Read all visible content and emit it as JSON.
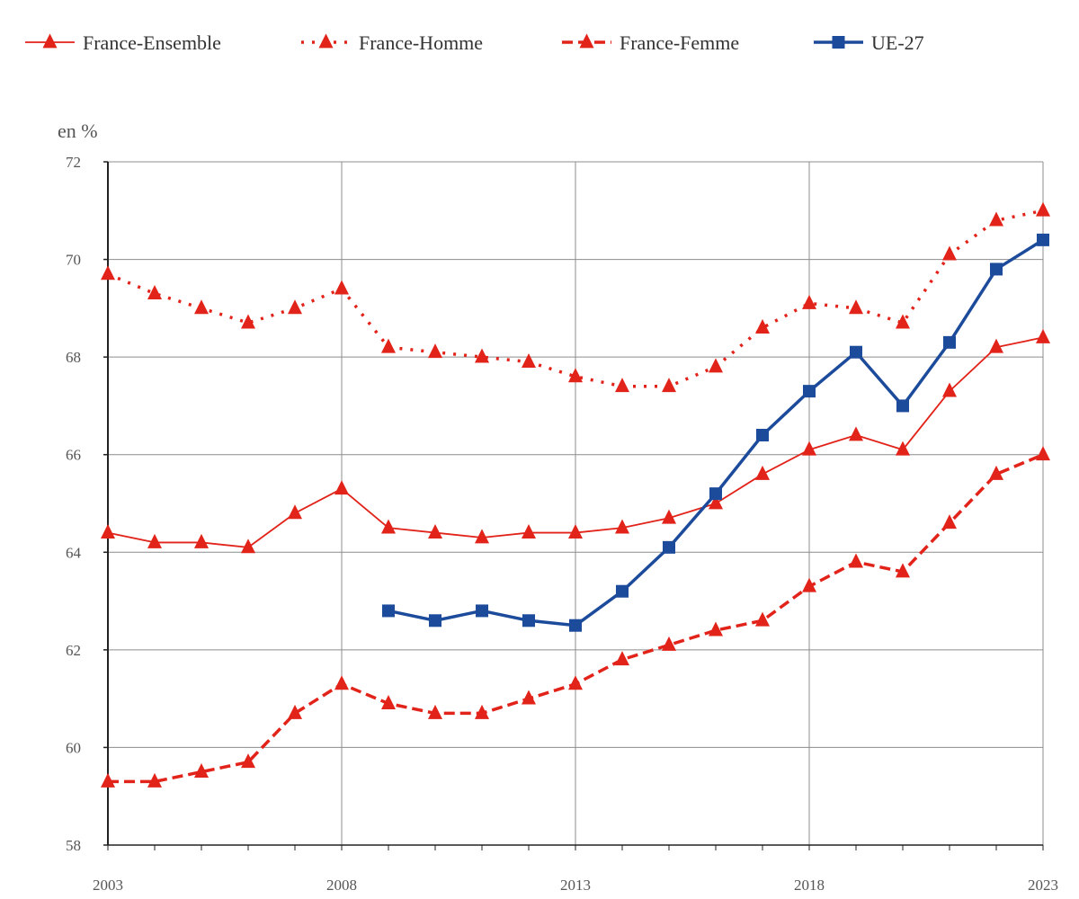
{
  "chart_data": {
    "type": "line",
    "ylabel": "en %",
    "ylim": [
      58,
      72
    ],
    "yticks": [
      "58",
      "60",
      "62",
      "64",
      "66",
      "68",
      "70",
      "72"
    ],
    "xlim": [
      2003,
      2023
    ],
    "xticks": [
      "2003",
      "2008",
      "2013",
      "2018",
      "2023"
    ],
    "x": [
      2003,
      2004,
      2005,
      2006,
      2007,
      2008,
      2009,
      2010,
      2011,
      2012,
      2013,
      2014,
      2015,
      2016,
      2017,
      2018,
      2019,
      2020,
      2021,
      2022,
      2023
    ],
    "grid": true,
    "legend_position": "top",
    "series": [
      {
        "name": "France-Ensemble",
        "color": "#e2231a",
        "line_style": "solid-thin",
        "marker": "triangle",
        "values": [
          64.4,
          64.2,
          64.2,
          64.1,
          64.8,
          65.3,
          64.5,
          64.4,
          64.3,
          64.4,
          64.4,
          64.5,
          64.7,
          65.0,
          65.6,
          66.1,
          66.4,
          66.1,
          67.3,
          68.2,
          68.4
        ]
      },
      {
        "name": "France-Homme",
        "color": "#e2231a",
        "line_style": "dotted",
        "marker": "triangle",
        "values": [
          69.7,
          69.3,
          69.0,
          68.7,
          69.0,
          69.4,
          68.2,
          68.1,
          68.0,
          67.9,
          67.6,
          67.4,
          67.4,
          67.8,
          68.6,
          69.1,
          69.0,
          68.7,
          70.1,
          70.8,
          71.0
        ]
      },
      {
        "name": "France-Femme",
        "color": "#e2231a",
        "line_style": "dashed",
        "marker": "triangle",
        "values": [
          59.3,
          59.3,
          59.5,
          59.7,
          60.7,
          61.3,
          60.9,
          60.7,
          60.7,
          61.0,
          61.3,
          61.8,
          62.1,
          62.4,
          62.6,
          63.3,
          63.8,
          63.6,
          64.6,
          65.6,
          66.0
        ]
      },
      {
        "name": "UE-27",
        "color": "#1d4b9b",
        "line_style": "solid-thick",
        "marker": "square",
        "values": [
          null,
          null,
          null,
          null,
          null,
          null,
          62.8,
          62.6,
          62.8,
          62.6,
          62.5,
          63.2,
          64.1,
          65.2,
          66.4,
          67.3,
          68.1,
          67.0,
          68.3,
          69.8,
          70.4
        ]
      }
    ]
  }
}
